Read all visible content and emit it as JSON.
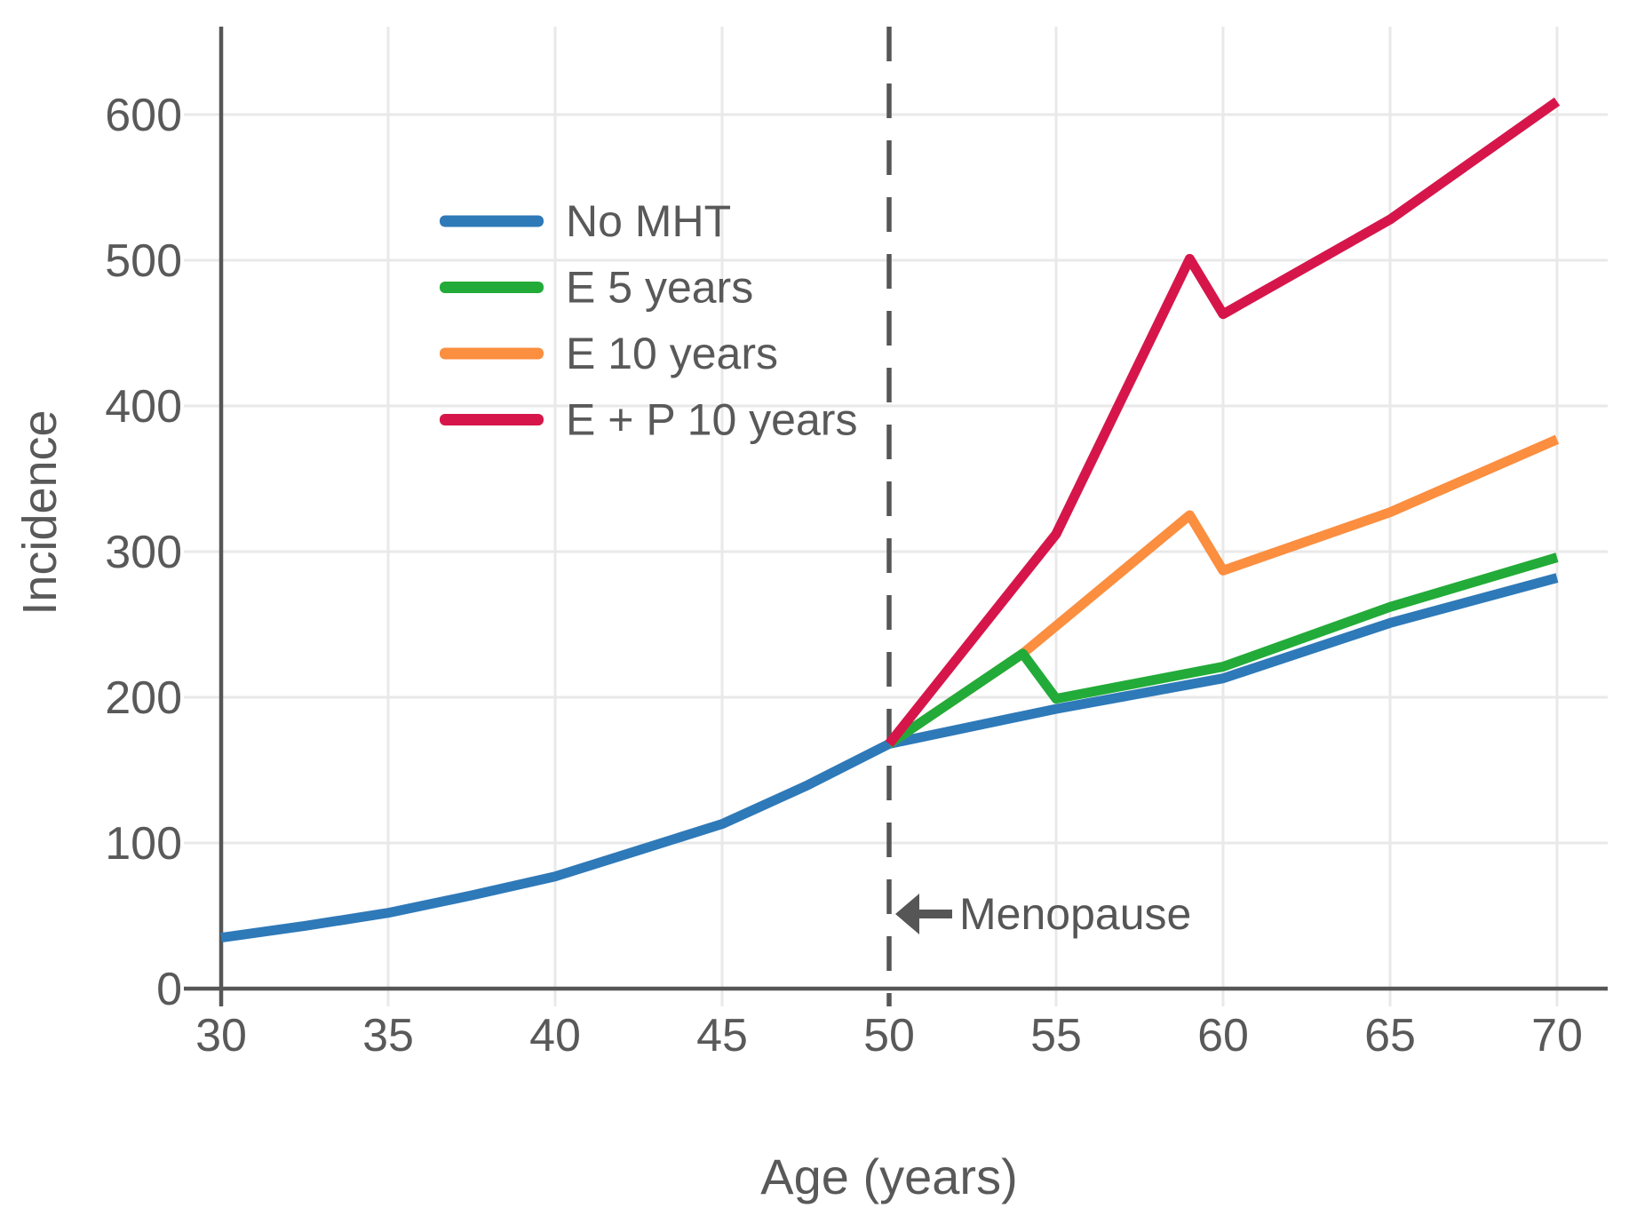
{
  "chart_data": {
    "type": "line",
    "title": "",
    "xlabel": "Age (years)",
    "ylabel": "Incidence",
    "xlim": [
      30,
      70
    ],
    "ylim": [
      0,
      650
    ],
    "xticks": [
      30,
      35,
      40,
      45,
      50,
      55,
      60,
      65,
      70
    ],
    "yticks": [
      0,
      100,
      200,
      300,
      400,
      500,
      600
    ],
    "grid": true,
    "grid_color": "#e9e9e9",
    "axis_color": "#565656",
    "text_color": "#595959",
    "legend_position": "upper-left",
    "vline": {
      "x": 50,
      "style": "dashed",
      "color": "#565656"
    },
    "annotation": {
      "text": "Menopause",
      "icon": "left-arrow-icon",
      "x": 50.3,
      "y": 50
    },
    "series": [
      {
        "name": "No MHT",
        "color": "#2e79b8",
        "points": [
          [
            30,
            35
          ],
          [
            32.5,
            43
          ],
          [
            35,
            52
          ],
          [
            37.5,
            64
          ],
          [
            40,
            77
          ],
          [
            42.5,
            95
          ],
          [
            45,
            113
          ],
          [
            47.5,
            139
          ],
          [
            50,
            168
          ],
          [
            55,
            192
          ],
          [
            60,
            213
          ],
          [
            65,
            251
          ],
          [
            70,
            282
          ]
        ]
      },
      {
        "name": "E 5 years",
        "color": "#22ab38",
        "points": [
          [
            50,
            168
          ],
          [
            54,
            230
          ],
          [
            55,
            199
          ],
          [
            60,
            221
          ],
          [
            65,
            262
          ],
          [
            70,
            296
          ]
        ]
      },
      {
        "name": "E 10 years",
        "color": "#fb8e3f",
        "points": [
          [
            50,
            168
          ],
          [
            54,
            230
          ],
          [
            59,
            325
          ],
          [
            60,
            287
          ],
          [
            65,
            327
          ],
          [
            70,
            377
          ]
        ]
      },
      {
        "name": "E + P 10 years",
        "color": "#d6164a",
        "points": [
          [
            50,
            168
          ],
          [
            55,
            312
          ],
          [
            59,
            501
          ],
          [
            60,
            463
          ],
          [
            65,
            528
          ],
          [
            70,
            609
          ]
        ]
      }
    ]
  }
}
